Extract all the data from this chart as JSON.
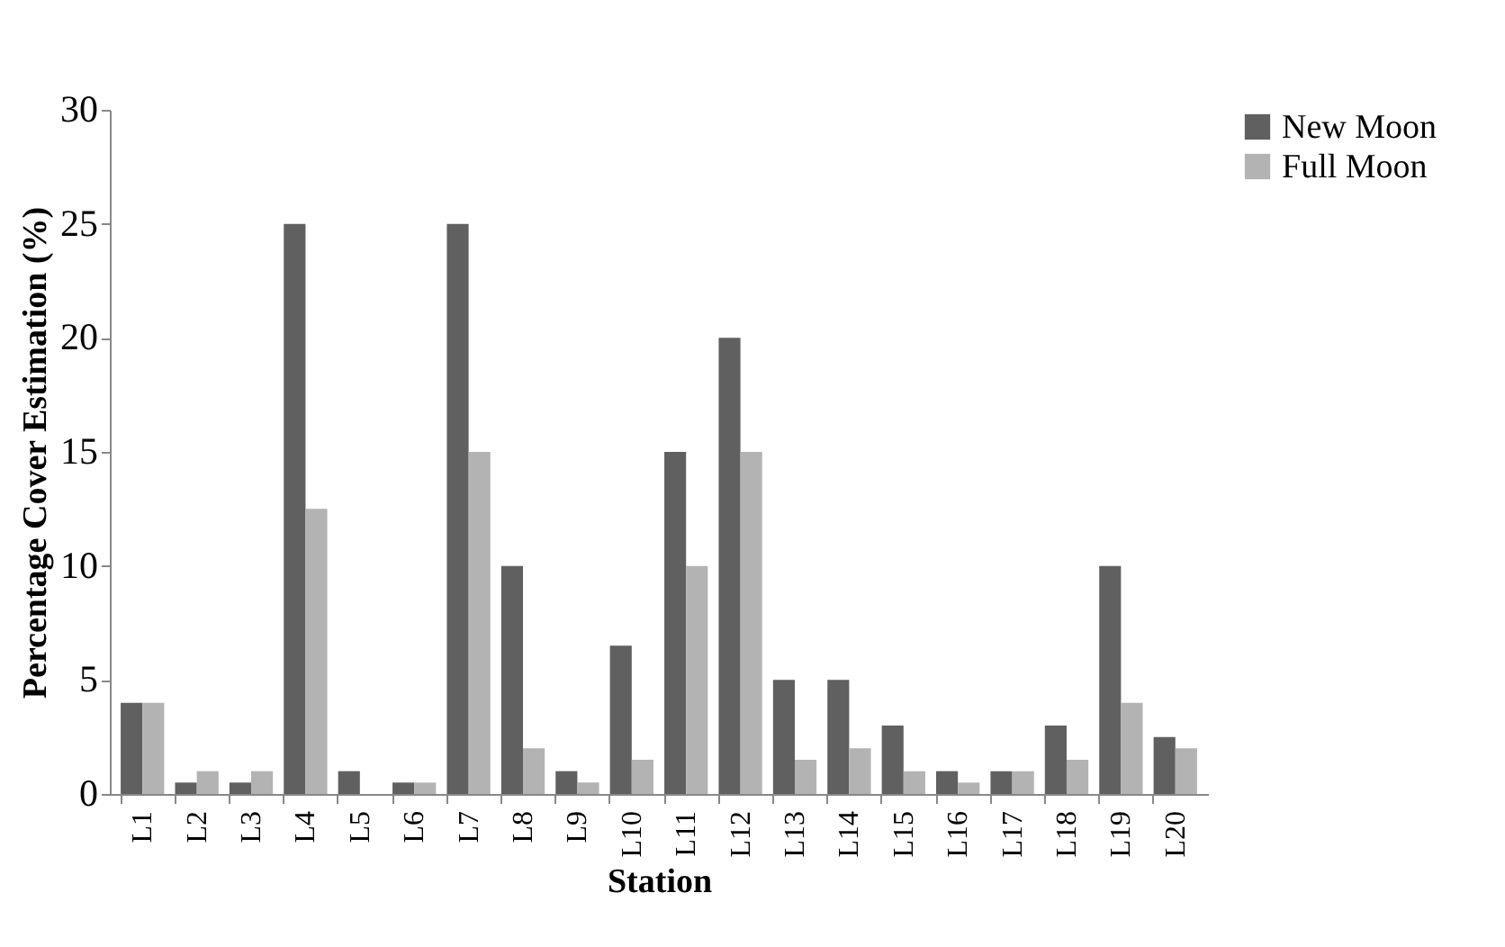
{
  "chart_data": {
    "type": "bar",
    "xlabel": "Station",
    "ylabel": "Percentage Cover Estimation (%)",
    "categories": [
      "L1",
      "L2",
      "L3",
      "L4",
      "L5",
      "L6",
      "L7",
      "L8",
      "L9",
      "L10",
      "L11",
      "L12",
      "L13",
      "L14",
      "L15",
      "L16",
      "L17",
      "L18",
      "L19",
      "L20"
    ],
    "series": [
      {
        "name": "New Moon",
        "color": "#606060",
        "values": [
          4,
          0.5,
          0.5,
          25,
          1,
          0.5,
          25,
          10,
          1,
          6.5,
          15,
          20,
          5,
          5,
          3,
          1,
          1,
          3,
          10,
          2.5
        ]
      },
      {
        "name": "Full Moon",
        "color": "#b3b3b3",
        "values": [
          4,
          1,
          1,
          12.5,
          0,
          0.5,
          15,
          2,
          0.5,
          1.5,
          10,
          15,
          1.5,
          2,
          1,
          0.5,
          1,
          1.5,
          4,
          2
        ]
      }
    ],
    "ylim": [
      0,
      30
    ],
    "yticks": [
      0,
      5,
      10,
      15,
      20,
      25,
      30
    ],
    "grid": false,
    "legend": "right"
  }
}
